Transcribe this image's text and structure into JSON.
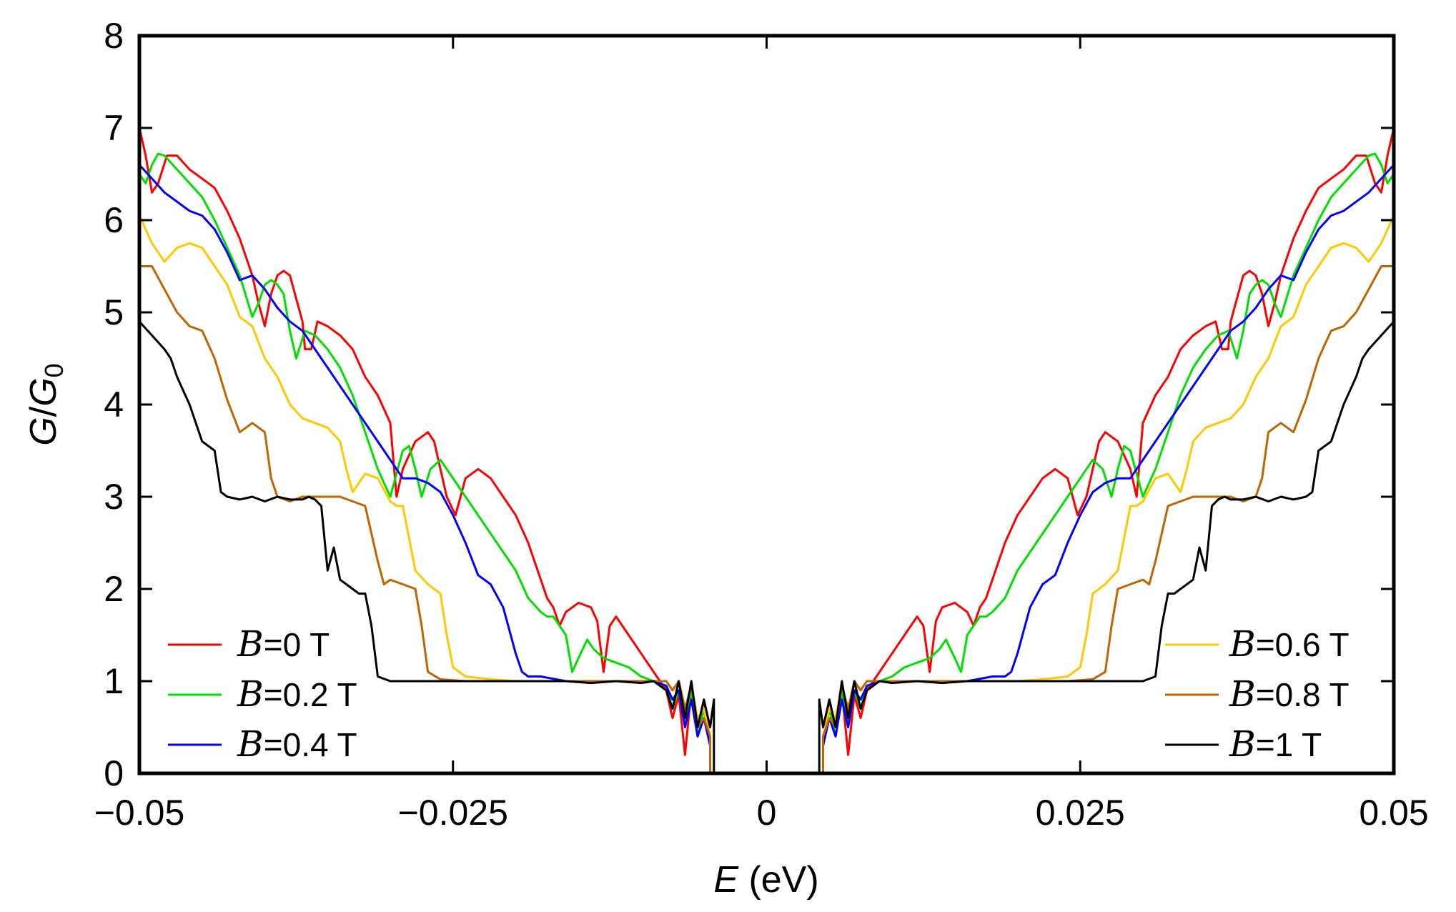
{
  "chart_data": {
    "type": "line",
    "title": "",
    "xlabel": {
      "var": "E",
      "unit": " (eV)"
    },
    "ylabel": {
      "var": "G",
      "sub": "0"
    },
    "xlim": [
      -0.05,
      0.05
    ],
    "ylim": [
      0,
      8
    ],
    "xticks": [
      -0.05,
      -0.025,
      0,
      0.025,
      0.05
    ],
    "xtick_labels": [
      "−0.05",
      "−0.025",
      "0",
      "0.025",
      "0.05"
    ],
    "yticks": [
      0,
      1,
      2,
      3,
      4,
      5,
      6,
      7,
      8
    ],
    "ytick_labels": [
      "0",
      "1",
      "2",
      "3",
      "4",
      "5",
      "6",
      "7",
      "8"
    ],
    "grid": false,
    "symmetric_in_E": true,
    "legend_left_position": "bottom-left",
    "legend_right_position": "bottom-right",
    "series": [
      {
        "name": "B=0 T",
        "symbol": "B",
        "label": "=0 T",
        "color": "#ff0000",
        "x": [
          0.0045,
          0.005,
          0.0055,
          0.006,
          0.0065,
          0.007,
          0.0075,
          0.008,
          0.009,
          0.01,
          0.011,
          0.012,
          0.0125,
          0.013,
          0.0135,
          0.014,
          0.015,
          0.016,
          0.0165,
          0.017,
          0.0175,
          0.018,
          0.019,
          0.02,
          0.021,
          0.022,
          0.023,
          0.024,
          0.0248,
          0.0255,
          0.026,
          0.0265,
          0.027,
          0.028,
          0.029,
          0.0295,
          0.03,
          0.031,
          0.032,
          0.033,
          0.034,
          0.035,
          0.0358,
          0.0363,
          0.0368,
          0.037,
          0.038,
          0.0385,
          0.039,
          0.0395,
          0.04,
          0.0405,
          0.041,
          0.0415,
          0.042,
          0.043,
          0.044,
          0.045,
          0.046,
          0.047,
          0.0478,
          0.0485,
          0.049,
          0.0495,
          0.05
        ],
        "y": [
          0.35,
          0.8,
          0.5,
          0.9,
          0.2,
          0.85,
          0.6,
          0.9,
          1.1,
          1.3,
          1.5,
          1.7,
          1.6,
          1.1,
          1.65,
          1.8,
          1.85,
          1.75,
          1.6,
          1.8,
          1.9,
          2.1,
          2.5,
          2.8,
          3.0,
          3.2,
          3.3,
          3.2,
          2.8,
          3.0,
          3.3,
          3.6,
          3.7,
          3.6,
          3.3,
          3.0,
          3.8,
          4.1,
          4.3,
          4.6,
          4.75,
          4.85,
          4.9,
          4.6,
          4.6,
          4.9,
          5.4,
          5.45,
          5.4,
          5.2,
          4.85,
          5.1,
          5.4,
          5.6,
          5.8,
          6.1,
          6.35,
          6.45,
          6.55,
          6.7,
          6.7,
          6.4,
          6.3,
          6.7,
          7.0
        ]
      },
      {
        "name": "B=0.2 T",
        "symbol": "B",
        "label": "=0.2 T",
        "color": "#00e000",
        "x": [
          0.0045,
          0.005,
          0.0055,
          0.006,
          0.0065,
          0.007,
          0.0075,
          0.008,
          0.009,
          0.01,
          0.011,
          0.012,
          0.013,
          0.0138,
          0.0143,
          0.015,
          0.0155,
          0.016,
          0.017,
          0.0175,
          0.018,
          0.019,
          0.02,
          0.021,
          0.022,
          0.023,
          0.024,
          0.025,
          0.026,
          0.0268,
          0.0275,
          0.028,
          0.0285,
          0.029,
          0.03,
          0.031,
          0.032,
          0.033,
          0.034,
          0.035,
          0.036,
          0.0368,
          0.0375,
          0.038,
          0.0385,
          0.039,
          0.0395,
          0.04,
          0.0405,
          0.041,
          0.042,
          0.043,
          0.044,
          0.045,
          0.046,
          0.047,
          0.048,
          0.0485,
          0.049,
          0.0495,
          0.05
        ],
        "y": [
          0.3,
          0.7,
          0.4,
          0.9,
          0.5,
          0.9,
          0.7,
          0.95,
          1.0,
          1.05,
          1.15,
          1.2,
          1.25,
          1.35,
          1.45,
          1.25,
          1.1,
          1.5,
          1.7,
          1.7,
          1.75,
          1.9,
          2.2,
          2.4,
          2.6,
          2.8,
          3.0,
          3.2,
          3.4,
          3.3,
          3.0,
          3.3,
          3.55,
          3.5,
          3.0,
          3.3,
          3.7,
          4.1,
          4.4,
          4.6,
          4.75,
          4.8,
          4.5,
          4.8,
          5.2,
          5.3,
          5.35,
          5.3,
          5.1,
          4.95,
          5.4,
          5.7,
          6.0,
          6.25,
          6.4,
          6.55,
          6.7,
          6.72,
          6.6,
          6.4,
          6.5
        ]
      },
      {
        "name": "B=0.4 T",
        "symbol": "B",
        "label": "=0.4 T",
        "color": "#0000ff",
        "x": [
          0.0045,
          0.005,
          0.0055,
          0.006,
          0.0065,
          0.007,
          0.0075,
          0.008,
          0.009,
          0.01,
          0.012,
          0.014,
          0.016,
          0.018,
          0.019,
          0.0195,
          0.02,
          0.021,
          0.022,
          0.023,
          0.024,
          0.025,
          0.026,
          0.027,
          0.028,
          0.029,
          0.03,
          0.031,
          0.032,
          0.033,
          0.034,
          0.035,
          0.036,
          0.037,
          0.038,
          0.039,
          0.04,
          0.041,
          0.042,
          0.043,
          0.044,
          0.045,
          0.046,
          0.047,
          0.048,
          0.049,
          0.05
        ],
        "y": [
          0.3,
          0.6,
          0.4,
          0.8,
          0.5,
          0.9,
          0.8,
          0.95,
          1.0,
          1.0,
          1.0,
          1.0,
          1.0,
          1.05,
          1.05,
          1.1,
          1.3,
          1.8,
          2.05,
          2.15,
          2.5,
          2.8,
          3.05,
          3.15,
          3.2,
          3.2,
          3.4,
          3.6,
          3.8,
          4.0,
          4.2,
          4.4,
          4.6,
          4.8,
          4.9,
          5.05,
          5.25,
          5.4,
          5.35,
          5.65,
          5.9,
          6.05,
          6.1,
          6.2,
          6.3,
          6.45,
          6.6
        ]
      },
      {
        "name": "B=0.6 T",
        "symbol": "B",
        "label": "=0.6 T",
        "color": "#ffc800",
        "x": [
          0.0045,
          0.005,
          0.0055,
          0.006,
          0.0065,
          0.007,
          0.0075,
          0.008,
          0.009,
          0.01,
          0.012,
          0.014,
          0.016,
          0.018,
          0.02,
          0.022,
          0.024,
          0.025,
          0.0255,
          0.026,
          0.0265,
          0.027,
          0.028,
          0.029,
          0.0295,
          0.03,
          0.031,
          0.032,
          0.033,
          0.0335,
          0.034,
          0.035,
          0.036,
          0.037,
          0.038,
          0.039,
          0.04,
          0.041,
          0.042,
          0.043,
          0.044,
          0.045,
          0.046,
          0.047,
          0.048,
          0.049,
          0.05
        ],
        "y": [
          0.4,
          0.7,
          0.6,
          0.95,
          0.7,
          1.0,
          0.9,
          1.0,
          1.0,
          1.0,
          1.0,
          1.0,
          1.0,
          1.0,
          1.0,
          1.02,
          1.05,
          1.15,
          1.5,
          1.95,
          2.0,
          2.05,
          2.2,
          2.9,
          2.9,
          2.95,
          3.2,
          3.25,
          3.05,
          3.3,
          3.6,
          3.75,
          3.8,
          3.85,
          4.0,
          4.3,
          4.5,
          4.85,
          4.95,
          5.3,
          5.5,
          5.7,
          5.75,
          5.7,
          5.55,
          5.75,
          6.05
        ]
      },
      {
        "name": "B=0.8 T",
        "symbol": "B",
        "label": "=0.8 T",
        "color": "#c06400",
        "x": [
          0.0045,
          0.005,
          0.0055,
          0.006,
          0.0065,
          0.007,
          0.0075,
          0.008,
          0.009,
          0.01,
          0.012,
          0.014,
          0.016,
          0.018,
          0.02,
          0.022,
          0.024,
          0.026,
          0.027,
          0.0275,
          0.028,
          0.029,
          0.03,
          0.0305,
          0.031,
          0.032,
          0.033,
          0.034,
          0.035,
          0.036,
          0.037,
          0.038,
          0.039,
          0.0395,
          0.04,
          0.041,
          0.042,
          0.043,
          0.044,
          0.045,
          0.046,
          0.047,
          0.048,
          0.049,
          0.05
        ],
        "y": [
          0.4,
          0.6,
          0.5,
          0.95,
          0.7,
          1.0,
          0.9,
          1.0,
          1.0,
          1.0,
          1.0,
          1.0,
          1.0,
          1.0,
          1.0,
          1.0,
          1.0,
          1.02,
          1.1,
          1.6,
          2.0,
          2.05,
          2.1,
          2.05,
          2.3,
          2.9,
          2.95,
          3.0,
          3.0,
          3.0,
          3.0,
          2.95,
          3.0,
          3.2,
          3.7,
          3.8,
          3.7,
          4.05,
          4.5,
          4.8,
          4.85,
          5.0,
          5.25,
          5.5,
          5.5
        ]
      },
      {
        "name": "B=1 T",
        "symbol": "B",
        "label": "=1 T",
        "color": "#000000",
        "x": [
          0.0042,
          0.0045,
          0.005,
          0.0055,
          0.006,
          0.0065,
          0.007,
          0.0075,
          0.008,
          0.009,
          0.01,
          0.012,
          0.014,
          0.016,
          0.018,
          0.02,
          0.022,
          0.024,
          0.026,
          0.028,
          0.03,
          0.031,
          0.0315,
          0.032,
          0.0325,
          0.033,
          0.034,
          0.0345,
          0.035,
          0.0355,
          0.036,
          0.0365,
          0.037,
          0.038,
          0.039,
          0.04,
          0.041,
          0.042,
          0.043,
          0.0435,
          0.044,
          0.045,
          0.046,
          0.0465,
          0.047,
          0.0475,
          0.048,
          0.049,
          0.05
        ],
        "y": [
          0.8,
          0.5,
          0.8,
          0.5,
          1.0,
          0.6,
          1.0,
          0.7,
          0.9,
          1.0,
          0.98,
          1.0,
          0.98,
          1.0,
          1.0,
          1.0,
          1.0,
          1.0,
          1.0,
          1.0,
          1.0,
          1.05,
          1.6,
          1.95,
          1.95,
          2.0,
          2.1,
          2.45,
          2.2,
          2.9,
          2.97,
          3.0,
          2.97,
          2.97,
          3.0,
          2.95,
          3.0,
          2.97,
          3.0,
          3.05,
          3.5,
          3.6,
          4.0,
          4.15,
          4.3,
          4.5,
          4.6,
          4.75,
          4.9
        ]
      }
    ]
  }
}
